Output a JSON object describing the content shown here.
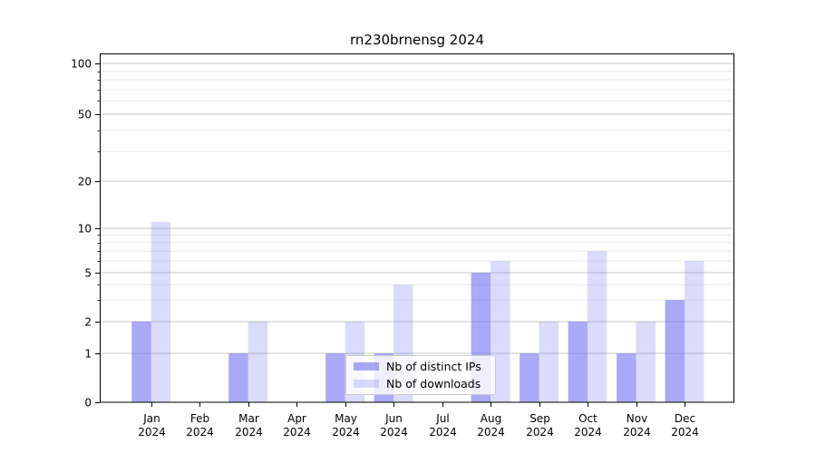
{
  "chart_data": {
    "type": "bar",
    "title": "rn230brnensg 2024",
    "categories": [
      "Jan",
      "Feb",
      "Mar",
      "Apr",
      "May",
      "Jun",
      "Jul",
      "Aug",
      "Sep",
      "Oct",
      "Nov",
      "Dec"
    ],
    "x_year_label": "2024",
    "series": [
      {
        "name": "Nb of distinct IPs",
        "color": "rgba(112,112,240,0.6)",
        "values": [
          2,
          0,
          1,
          0,
          1,
          1,
          0,
          5,
          1,
          2,
          1,
          3
        ]
      },
      {
        "name": "Nb of downloads",
        "color": "rgba(112,112,240,0.25)",
        "values": [
          11,
          0,
          2,
          0,
          2,
          4,
          0,
          6,
          2,
          7,
          2,
          6
        ]
      }
    ],
    "y_axis": {
      "scale": "symlog",
      "major_ticks": [
        0,
        1,
        2,
        5,
        10,
        20,
        50,
        100
      ],
      "minor_gridlines": [
        3,
        4,
        6,
        7,
        8,
        9,
        30,
        40,
        60,
        70,
        80,
        90
      ],
      "ylim": [
        0,
        115
      ]
    },
    "xlabel": "",
    "ylabel": "",
    "grid": "on",
    "legend_position": "lower center"
  }
}
